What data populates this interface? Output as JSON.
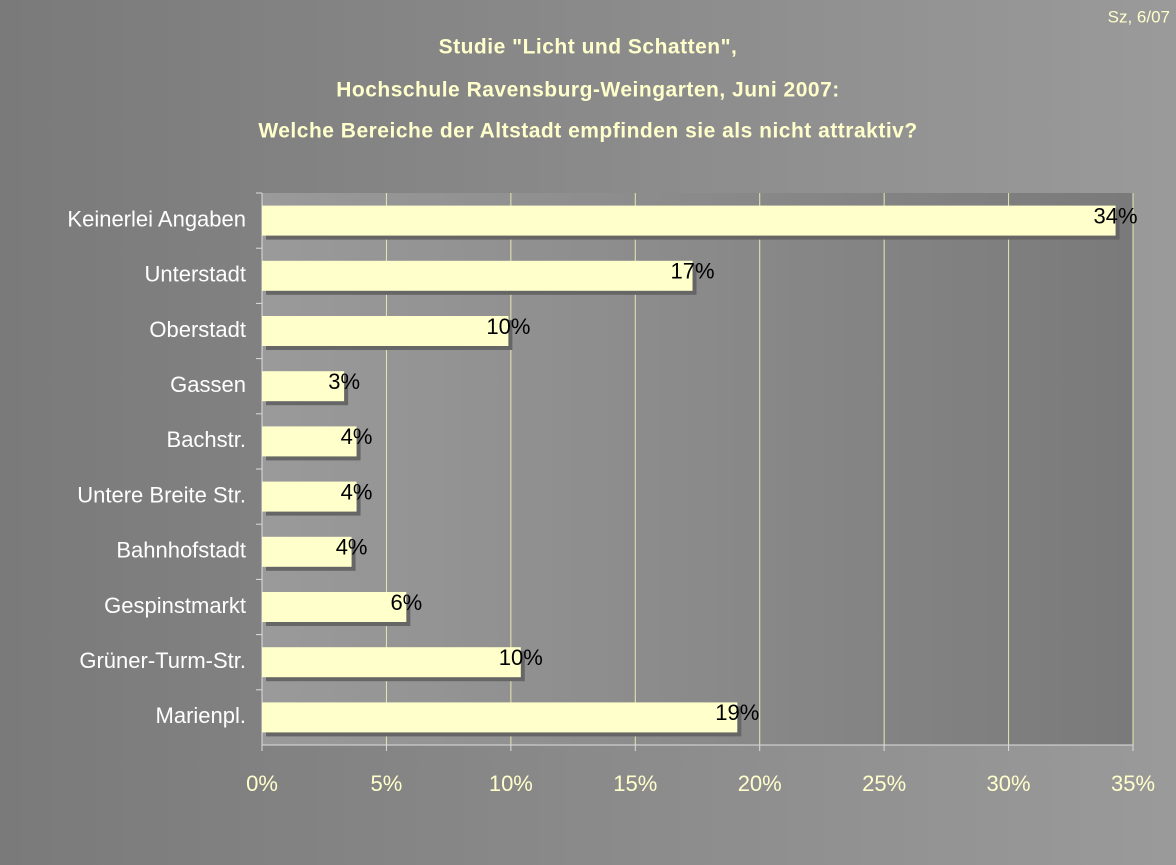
{
  "chart_data": {
    "type": "bar",
    "orientation": "horizontal",
    "corner_note": "Sz, 6/07",
    "title": [
      "Studie \"Licht und Schatten\",",
      "Hochschule Ravensburg-Weingarten, Juni 2007:",
      "Welche Bereiche der Altstadt empfinden sie als nicht attraktiv?"
    ],
    "categories": [
      "Keinerlei Angaben",
      "Unterstadt",
      "Oberstadt",
      "Gassen",
      "Bachstr.",
      "Untere Breite Str.",
      "Bahnhofstadt",
      "Gespinstmarkt",
      "Grüner-Turm-Str.",
      "Marienpl."
    ],
    "values": [
      34.3,
      17.3,
      9.9,
      3.3,
      3.8,
      3.8,
      3.6,
      5.8,
      10.4,
      19.1
    ],
    "value_labels": [
      "34%",
      "17%",
      "10%",
      "3%",
      "4%",
      "4%",
      "4%",
      "6%",
      "10%",
      "19%"
    ],
    "color": "#ffffcc",
    "xlim": [
      0,
      35
    ],
    "xticks": [
      {
        "value": 0,
        "label": "0%"
      },
      {
        "value": 5,
        "label": "5%"
      },
      {
        "value": 10,
        "label": "10%"
      },
      {
        "value": 15,
        "label": "15%"
      },
      {
        "value": 20,
        "label": "20%"
      },
      {
        "value": 25,
        "label": "25%"
      },
      {
        "value": 30,
        "label": "30%"
      },
      {
        "value": 35,
        "label": "35%"
      }
    ],
    "grid": true
  }
}
